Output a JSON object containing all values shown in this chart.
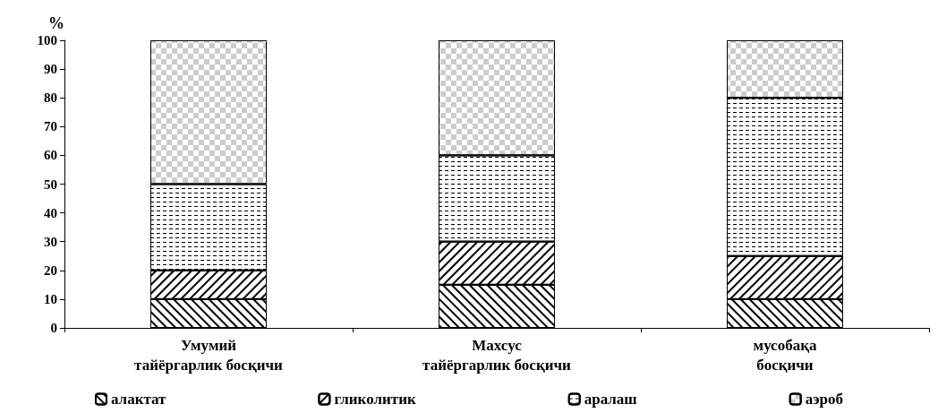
{
  "chart_data": {
    "type": "bar",
    "stacked": true,
    "ylabel": "%",
    "categories": [
      "Умумий\nтайёргарлик босқичи",
      "Махсус\nтайёргарлик босқичи",
      "мусобақа\nбосқичи"
    ],
    "series": [
      {
        "name": "алактат",
        "color": "#ffffff",
        "values": [
          10,
          15,
          10
        ]
      },
      {
        "name": "гликолитик",
        "color": "#ffffff",
        "values": [
          10,
          15,
          15
        ]
      },
      {
        "name": "аралаш",
        "color": "#ffffff",
        "values": [
          30,
          30,
          55
        ]
      },
      {
        "name": "аэроб",
        "color": "#ffffff",
        "values": [
          50,
          40,
          20
        ]
      }
    ],
    "ylim": [
      0,
      100
    ],
    "yticks": [
      0,
      10,
      20,
      30,
      40,
      50,
      60,
      70,
      80,
      90,
      100
    ],
    "grid": false,
    "legend": "bottom"
  }
}
